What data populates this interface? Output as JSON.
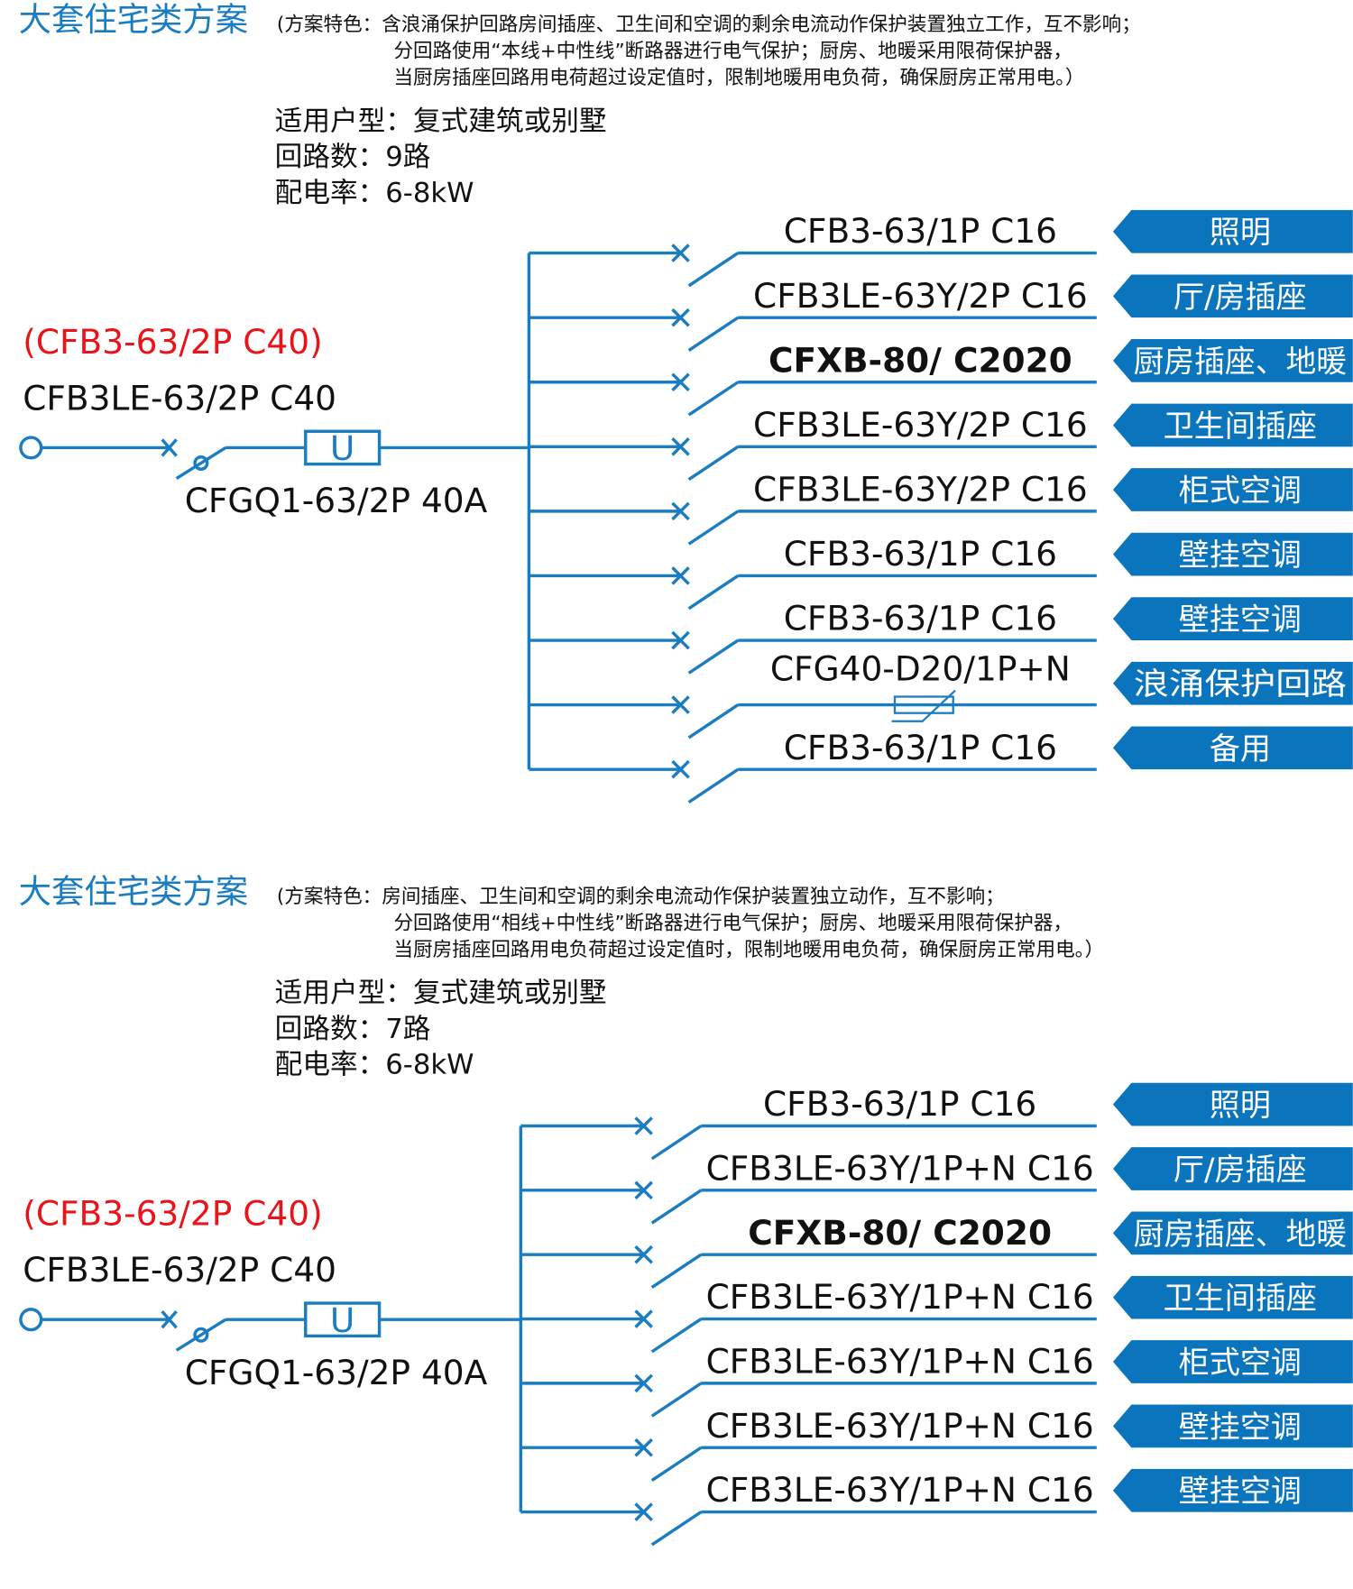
{
  "colors": {
    "accent": "#1a7cc1",
    "label_bg": "#0a74bd",
    "highlight": "#e8141a"
  },
  "schemes": [
    {
      "title": "大套住宅类方案",
      "features": [
        "(方案特色：含浪涌保护回路房间插座、卫生间和空调的剩余电流动作保护装置独立工作，互不影响；",
        "分回路使用“本线+中性线”断路器进行电气保护；厨房、地暖采用限荷保护器，",
        "当厨房插座回路用电荷超过设定值时，限制地暖用电负荷，确保厨房正常用电。）"
      ],
      "info": [
        "适用户型：复式建筑或别墅",
        "回路数：9路",
        "配电率：6-8kW"
      ],
      "main": {
        "alt_model": "(CFB3-63/2P  C40)",
        "model": "CFB3LE-63/2P  C40",
        "isolator": "CFGQ1-63/2P  40A",
        "protector_symbol": "U"
      },
      "branches": [
        {
          "model": "CFB3-63/1P  C16",
          "label": "照明"
        },
        {
          "model": "CFB3LE-63Y/2P  C16",
          "label": "厅/房插座"
        },
        {
          "model": "CFXB-80/ C2020",
          "label": "厨房插座、地暖",
          "bold": true
        },
        {
          "model": "CFB3LE-63Y/2P  C16",
          "label": "卫生间插座"
        },
        {
          "model": "CFB3LE-63Y/2P  C16",
          "label": "柜式空调"
        },
        {
          "model": "CFB3-63/1P  C16",
          "label": "壁挂空调"
        },
        {
          "model": "CFB3-63/1P  C16",
          "label": "壁挂空调"
        },
        {
          "model": "CFG40-D20/1P+N",
          "label": "浪涌保护回路",
          "surge": true
        },
        {
          "model": "CFB3-63/1P  C16",
          "label": "备用"
        }
      ]
    },
    {
      "title": "大套住宅类方案",
      "features": [
        "(方案特色：房间插座、卫生间和空调的剩余电流动作保护装置独立动作，互不影响；",
        "分回路使用“相线+中性线”断路器进行电气保护；厨房、地暖采用限荷保护器，",
        "当厨房插座回路用电负荷超过设定值时，限制地暖用电负荷，确保厨房正常用电。）"
      ],
      "info": [
        "适用户型：复式建筑或别墅",
        "回路数：7路",
        "配电率：6-8kW"
      ],
      "main": {
        "alt_model": "(CFB3-63/2P  C40)",
        "model": "CFB3LE-63/2P  C40",
        "isolator": "CFGQ1-63/2P  40A",
        "protector_symbol": "U"
      },
      "branches": [
        {
          "model": "CFB3-63/1P  C16",
          "label": "照明"
        },
        {
          "model": "CFB3LE-63Y/1P+N  C16",
          "label": "厅/房插座"
        },
        {
          "model": "CFXB-80/ C2020",
          "label": "厨房插座、地暖",
          "bold": true
        },
        {
          "model": "CFB3LE-63Y/1P+N  C16",
          "label": "卫生间插座"
        },
        {
          "model": "CFB3LE-63Y/1P+N  C16",
          "label": "柜式空调"
        },
        {
          "model": "CFB3LE-63Y/1P+N  C16",
          "label": "壁挂空调"
        },
        {
          "model": "CFB3LE-63Y/1P+N  C16",
          "label": "壁挂空调"
        }
      ]
    }
  ]
}
